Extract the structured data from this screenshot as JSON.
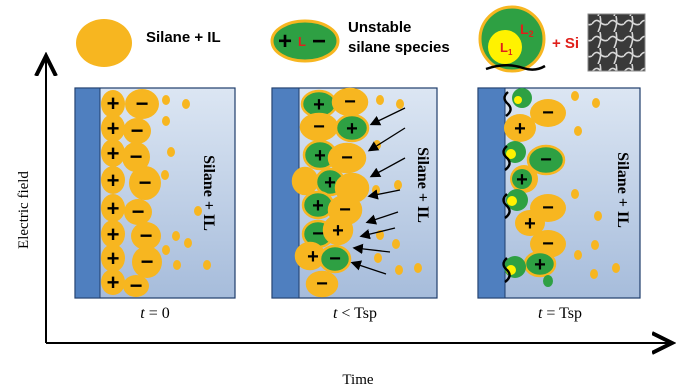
{
  "legend": {
    "silane_il": "Silane + IL",
    "unstable_line1": "Unstable",
    "unstable_line2": "silane species",
    "unstable_symbol_plus": "+",
    "unstable_symbol_l": "L",
    "unstable_symbol_minus": "−",
    "l2_label": "L",
    "l2_sub": "2",
    "l1_label": "L",
    "l1_sub": "1",
    "plus_si": "+ Si"
  },
  "axes": {
    "y_label": "Electric field",
    "x_label": "Time"
  },
  "panels": [
    {
      "id": "t0",
      "side_label": "Silane + IL",
      "time_italic": "t",
      "time_rest": " = 0"
    },
    {
      "id": "t-lt-tsp",
      "side_label": "Silane + IL",
      "time_italic": "t",
      "time_rest": " < Tsp"
    },
    {
      "id": "t-eq-tsp",
      "side_label": "Silane + IL",
      "time_italic": "t",
      "time_rest": " = Tsp"
    }
  ],
  "symbols": {
    "plus": "+",
    "minus": "−"
  },
  "colors": {
    "ion_orange": "#F7B620",
    "green": "#2EA043",
    "electrode_blue": "#4F7FBF",
    "panel_top": "#D7E3F2",
    "panel_bottom": "#A9BFDD",
    "si_red": "#E0201B",
    "l_yellow": "#FFF200",
    "arrow": "#000000"
  }
}
